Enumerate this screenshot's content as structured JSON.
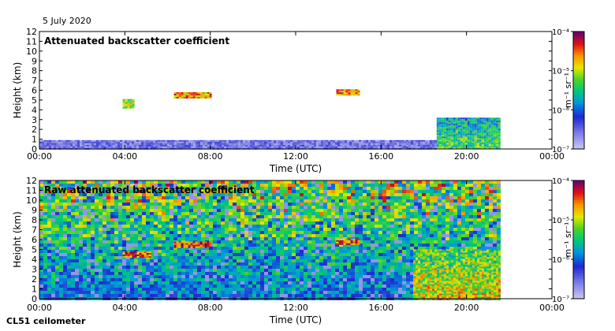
{
  "date": "5 July 2020",
  "instrument": "CL51 ceilometer",
  "chart_data": [
    {
      "type": "heatmap",
      "title": "Attenuated backscatter coefficient",
      "xlabel": "Time (UTC)",
      "ylabel": "Height (km)",
      "xticks": [
        "00:00",
        "04:00",
        "08:00",
        "12:00",
        "16:00",
        "20:00",
        "00:00"
      ],
      "xlim_hours": [
        0,
        24
      ],
      "ylim": [
        0,
        12
      ],
      "yticks": [
        0,
        1,
        2,
        3,
        4,
        5,
        6,
        7,
        8,
        9,
        10,
        11,
        12
      ],
      "colorbar": {
        "label": "m⁻¹ sr⁻¹",
        "ticks": [
          "10⁻⁴",
          "10⁻⁵",
          "10⁻⁶",
          "10⁻⁷"
        ],
        "range_log10": [
          -7,
          -4
        ]
      },
      "features": [
        {
          "kind": "boundary layer",
          "t": [
            0,
            18.5
          ],
          "h": [
            0,
            0.9
          ],
          "level": 0.18
        },
        {
          "kind": "cloud",
          "t": [
            3.9,
            4.4
          ],
          "h": [
            4.2,
            5.1
          ],
          "level": 0.7
        },
        {
          "kind": "cloud",
          "t": [
            6.3,
            8.0
          ],
          "h": [
            5.2,
            5.8
          ],
          "level": 0.85
        },
        {
          "kind": "cloud",
          "t": [
            13.9,
            15.0
          ],
          "h": [
            5.5,
            6.1
          ],
          "level": 0.85
        },
        {
          "kind": "rain/low cloud",
          "t": [
            18.6,
            21.5
          ],
          "h": [
            0,
            3.2
          ],
          "level": 0.6
        }
      ]
    },
    {
      "type": "heatmap",
      "title": "Raw attenuated backscatter coefficient",
      "xlabel": "Time (UTC)",
      "ylabel": "Height (km)",
      "xticks": [
        "00:00",
        "04:00",
        "08:00",
        "12:00",
        "16:00",
        "20:00",
        "00:00"
      ],
      "xlim_hours": [
        0,
        24
      ],
      "ylim": [
        0,
        12
      ],
      "yticks": [
        0,
        1,
        2,
        3,
        4,
        5,
        6,
        7,
        8,
        9,
        10,
        11,
        12
      ],
      "colorbar": {
        "label": "m⁻¹ sr⁻¹",
        "ticks": [
          "10⁻⁴",
          "10⁻⁵",
          "10⁻⁶",
          "10⁻⁷"
        ],
        "range_log10": [
          -7,
          -4
        ]
      },
      "features": [
        {
          "kind": "noise field",
          "t": [
            0,
            21.6
          ],
          "h": [
            0,
            12
          ],
          "level": 0.45
        },
        {
          "kind": "cloud",
          "t": [
            3.9,
            5.2
          ],
          "h": [
            4.2,
            4.8
          ],
          "level": 0.9
        },
        {
          "kind": "cloud",
          "t": [
            6.3,
            8.0
          ],
          "h": [
            5.2,
            5.8
          ],
          "level": 0.95
        },
        {
          "kind": "cloud",
          "t": [
            13.9,
            15.0
          ],
          "h": [
            5.5,
            6.1
          ],
          "level": 0.9
        },
        {
          "kind": "rain/low cloud",
          "t": [
            17.5,
            21.5
          ],
          "h": [
            0,
            5.0
          ],
          "level": 0.75
        }
      ]
    }
  ]
}
